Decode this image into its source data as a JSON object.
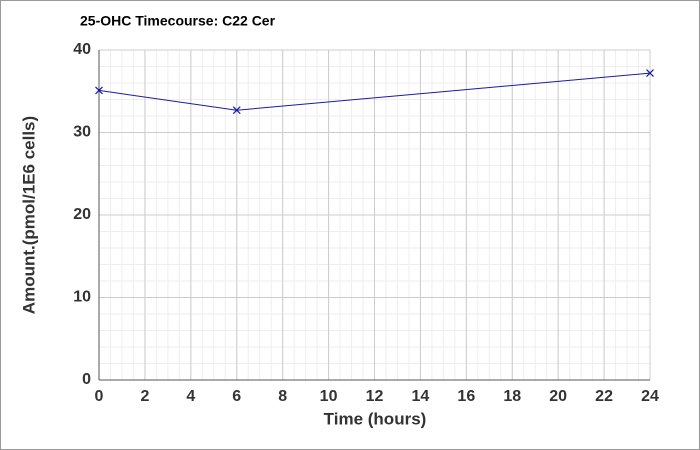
{
  "chart_data": {
    "type": "line",
    "title": "25-OHC Timecourse: C22 Cer",
    "x_label": "Time (hours)",
    "y_label": "Amount.(pmol/1E6 cells)",
    "x": [
      0,
      6,
      24
    ],
    "series": [
      {
        "name": "C22 Cer",
        "color": "#1a1aa6",
        "values": [
          35.1,
          32.7,
          37.2
        ]
      }
    ],
    "xlim": [
      0,
      24
    ],
    "xticks": [
      0,
      2,
      4,
      6,
      8,
      10,
      12,
      14,
      16,
      18,
      20,
      22,
      24
    ],
    "ylim": [
      0,
      40
    ],
    "yticks": [
      0,
      10,
      20,
      30,
      40
    ],
    "grid": true,
    "minor_grid": true,
    "marker": "x"
  }
}
